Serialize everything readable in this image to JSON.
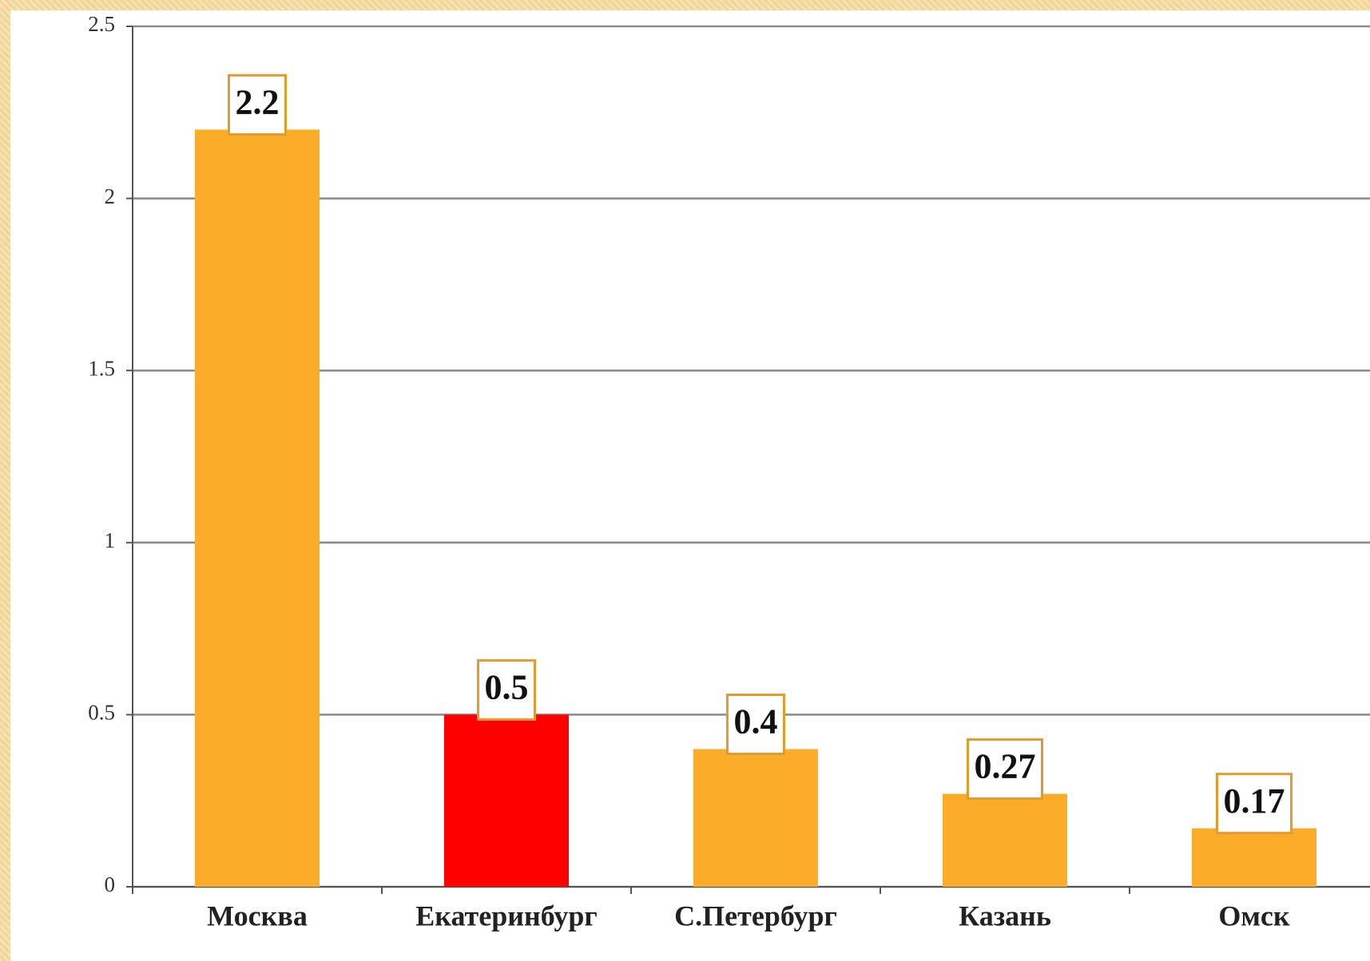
{
  "chart_data": {
    "type": "bar",
    "categories": [
      "Москва",
      "Екатеринбург",
      "С.Петербург",
      "Казань",
      "Омск"
    ],
    "values": [
      2.2,
      0.5,
      0.4,
      0.27,
      0.17
    ],
    "colors": [
      "#fbad2a",
      "#ff0000",
      "#fbad2a",
      "#fbad2a",
      "#fbad2a"
    ],
    "ylim": [
      0,
      2.5
    ],
    "yticks": [
      0,
      0.5,
      1,
      1.5,
      2,
      2.5
    ],
    "grid": true
  }
}
